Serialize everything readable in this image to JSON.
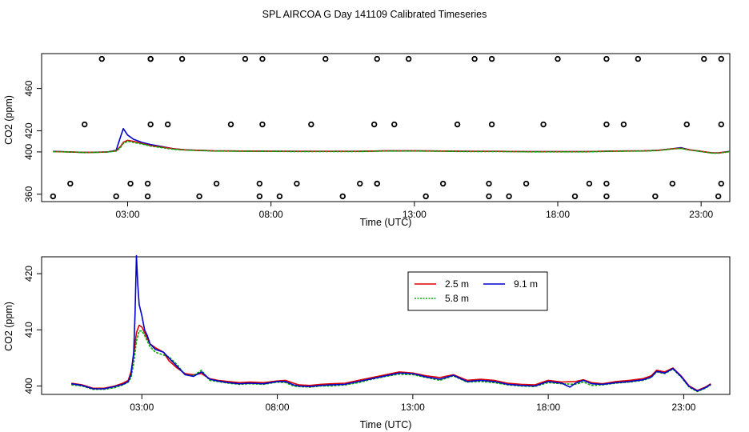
{
  "title": "SPL AIRCOA G  Day 141109  Calibrated Timeseries",
  "chart_data": [
    {
      "type": "scatter+line",
      "xlabel": "Time (UTC)",
      "ylabel": "CO2 (ppm)",
      "xlim": [
        0.0,
        24.0
      ],
      "ylim": [
        353,
        493
      ],
      "xticks": [
        {
          "v": 3,
          "label": "03:00"
        },
        {
          "v": 8,
          "label": "08:00"
        },
        {
          "v": 13,
          "label": "13:00"
        },
        {
          "v": 18,
          "label": "18:00"
        },
        {
          "v": 23,
          "label": "23:00"
        }
      ],
      "yticks": [
        {
          "v": 360,
          "label": "360"
        },
        {
          "v": 400,
          "label": "400"
        },
        {
          "v": 420,
          "label": "420"
        },
        {
          "v": 460,
          "label": "460"
        }
      ],
      "points": {
        "x": [
          0.4,
          1.0,
          1.5,
          2.1,
          2.6,
          3.1,
          3.7,
          3.7,
          3.8,
          3.8,
          3.8,
          4.4,
          4.9,
          5.5,
          6.1,
          6.6,
          7.1,
          7.6,
          7.6,
          7.7,
          7.7,
          8.3,
          8.9,
          9.4,
          9.9,
          10.5,
          11.1,
          11.6,
          11.7,
          11.7,
          11.7,
          12.3,
          12.8,
          13.4,
          14.0,
          14.5,
          15.1,
          15.6,
          15.6,
          15.7,
          15.7,
          16.3,
          16.9,
          17.5,
          18.0,
          18.6,
          19.1,
          19.7,
          19.7,
          19.7,
          19.7,
          20.3,
          20.8,
          21.4,
          22.0,
          22.5,
          23.1,
          23.6,
          23.7,
          23.7,
          23.7
        ],
        "y": [
          358,
          370,
          426,
          488,
          358,
          370,
          358,
          370,
          426,
          488,
          488,
          426,
          488,
          358,
          370,
          426,
          488,
          358,
          370,
          426,
          488,
          358,
          370,
          426,
          488,
          358,
          370,
          426,
          488,
          370,
          370,
          426,
          488,
          358,
          370,
          426,
          488,
          358,
          370,
          426,
          488,
          358,
          370,
          426,
          488,
          358,
          370,
          426,
          488,
          358,
          370,
          426,
          488,
          358,
          370,
          426,
          488,
          358,
          370,
          426,
          488
        ]
      },
      "series": [
        {
          "name": "9.1 m",
          "color": "#0000cc",
          "x": [
            0.4,
            1.0,
            1.5,
            2.0,
            2.3,
            2.6,
            2.75,
            2.85,
            3.0,
            3.2,
            3.5,
            3.8,
            4.2,
            4.6,
            5.0,
            5.5,
            6.0,
            7.0,
            8.0,
            9.0,
            10.0,
            11.0,
            12.0,
            13.0,
            14.0,
            15.0,
            16.0,
            17.0,
            18.0,
            19.0,
            20.0,
            21.0,
            21.5,
            22.0,
            22.3,
            22.6,
            23.0,
            23.4,
            23.6,
            24.0
          ],
          "values": [
            400.5,
            400,
            399.5,
            399.8,
            400,
            401.5,
            414,
            422,
            416,
            412,
            409,
            407,
            405,
            403,
            402,
            401.5,
            401,
            400.8,
            400.7,
            400.5,
            400.5,
            400.5,
            401,
            401,
            400.8,
            400.5,
            400.5,
            400.3,
            400.3,
            400.3,
            400.8,
            401,
            401.5,
            403,
            404,
            402,
            400.5,
            399,
            399,
            400.5
          ]
        },
        {
          "name": "2.5 m",
          "color": "#dd0000",
          "x": [
            0.4,
            1.0,
            1.5,
            2.0,
            2.3,
            2.6,
            2.75,
            2.85,
            3.0,
            3.2,
            3.5,
            3.8,
            4.2,
            4.6,
            5.0,
            5.5,
            6.0,
            7.0,
            8.0,
            9.0,
            10.0,
            11.0,
            12.0,
            13.0,
            14.0,
            15.0,
            16.0,
            17.0,
            18.0,
            19.0,
            20.0,
            21.0,
            21.5,
            22.0,
            22.3,
            22.6,
            23.0,
            23.4,
            23.6,
            24.0
          ],
          "values": [
            400.3,
            400,
            399.5,
            399.7,
            400,
            401,
            405,
            409,
            411,
            410,
            408,
            406,
            404.5,
            403,
            402,
            401.5,
            401,
            400.8,
            400.7,
            400.5,
            400.5,
            400.5,
            401,
            401,
            400.8,
            400.5,
            400.5,
            400.3,
            400.3,
            400.3,
            400.8,
            401,
            401.5,
            403,
            403.5,
            402,
            400.5,
            399,
            399,
            400.3
          ]
        },
        {
          "name": "5.8 m",
          "color": "#00aa00",
          "x": [
            0.4,
            1.0,
            1.5,
            2.0,
            2.3,
            2.6,
            2.75,
            2.85,
            3.0,
            3.2,
            3.5,
            3.8,
            4.2,
            4.6,
            5.0,
            5.5,
            6.0,
            7.0,
            8.0,
            9.0,
            10.0,
            11.0,
            12.0,
            13.0,
            14.0,
            15.0,
            16.0,
            17.0,
            18.0,
            19.0,
            20.0,
            21.0,
            21.5,
            22.0,
            22.3,
            22.6,
            23.0,
            23.4,
            23.6,
            24.0
          ],
          "values": [
            400.2,
            400,
            399.4,
            399.6,
            399.9,
            400.8,
            404,
            408,
            410,
            409,
            407.5,
            405.5,
            404,
            402.5,
            401.8,
            401.3,
            400.8,
            400.6,
            400.5,
            400.3,
            400.3,
            400.3,
            400.8,
            400.8,
            400.6,
            400.3,
            400.3,
            400.1,
            400.1,
            400.1,
            400.6,
            400.8,
            401.3,
            402.8,
            403.3,
            401.8,
            400.3,
            398.8,
            398.8,
            400.2
          ]
        }
      ]
    },
    {
      "type": "line",
      "xlabel": "Time (UTC)",
      "ylabel": "CO2 (ppm)",
      "xlim": [
        -0.7,
        24.7
      ],
      "ylim": [
        398.5,
        423
      ],
      "xticks": [
        {
          "v": 3,
          "label": "03:00"
        },
        {
          "v": 8,
          "label": "08:00"
        },
        {
          "v": 13,
          "label": "13:00"
        },
        {
          "v": 18,
          "label": "18:00"
        },
        {
          "v": 23,
          "label": "23:00"
        }
      ],
      "yticks": [
        {
          "v": 400,
          "label": "400"
        },
        {
          "v": 410,
          "label": "410"
        },
        {
          "v": 420,
          "label": "420"
        }
      ],
      "legend": {
        "placement": "top-right",
        "entries": [
          {
            "label": "2.5 m",
            "color": "#dd0000"
          },
          {
            "label": "9.1 m",
            "color": "#0000cc"
          },
          {
            "label": "5.8 m",
            "color": "#00aa00"
          }
        ]
      },
      "series": [
        {
          "name": "2.5 m",
          "color": "#dd0000",
          "x": [
            0.4,
            0.8,
            1.2,
            1.6,
            2.0,
            2.3,
            2.5,
            2.6,
            2.7,
            2.8,
            2.9,
            3.0,
            3.1,
            3.3,
            3.5,
            3.8,
            4.0,
            4.3,
            4.6,
            4.9,
            5.2,
            5.5,
            5.8,
            6.2,
            6.6,
            7.0,
            7.5,
            8.0,
            8.3,
            8.6,
            8.8,
            9.2,
            9.6,
            10.0,
            10.5,
            11.0,
            11.5,
            12.0,
            12.5,
            13.0,
            13.5,
            14.0,
            14.5,
            15.0,
            15.5,
            16.0,
            16.5,
            17.0,
            17.5,
            18.0,
            18.5,
            19.0,
            19.3,
            19.6,
            20.0,
            20.5,
            21.0,
            21.5,
            21.8,
            22.0,
            22.3,
            22.6,
            22.9,
            23.2,
            23.5,
            23.8,
            24.0
          ],
          "values": [
            400.5,
            400.2,
            399.6,
            399.6,
            400.0,
            400.5,
            401.0,
            402.5,
            405.5,
            409.5,
            410.8,
            410.5,
            409.5,
            407.5,
            406.8,
            406.0,
            404.5,
            403.2,
            402.2,
            402.0,
            402.2,
            401.3,
            401.0,
            400.8,
            400.6,
            400.7,
            400.6,
            400.9,
            401.0,
            400.5,
            400.2,
            400.1,
            400.3,
            400.4,
            400.5,
            401.0,
            401.5,
            402.0,
            402.5,
            402.3,
            401.8,
            401.5,
            402.0,
            401.0,
            401.2,
            401.0,
            400.5,
            400.3,
            400.2,
            401.0,
            400.7,
            400.8,
            401.1,
            400.6,
            400.4,
            400.8,
            401.0,
            401.3,
            401.8,
            402.8,
            402.5,
            403.2,
            401.8,
            400.0,
            399.2,
            399.8,
            400.4
          ]
        },
        {
          "name": "5.8 m",
          "color": "#00aa00",
          "x": [
            0.4,
            0.8,
            1.2,
            1.6,
            2.0,
            2.3,
            2.5,
            2.6,
            2.7,
            2.8,
            2.9,
            3.0,
            3.1,
            3.3,
            3.5,
            3.8,
            4.0,
            4.3,
            4.6,
            4.9,
            5.2,
            5.5,
            5.8,
            6.2,
            6.6,
            7.0,
            7.5,
            8.0,
            8.3,
            8.6,
            8.8,
            9.2,
            9.6,
            10.0,
            10.5,
            11.0,
            11.5,
            12.0,
            12.5,
            13.0,
            13.5,
            14.0,
            14.5,
            15.0,
            15.5,
            16.0,
            16.5,
            17.0,
            17.5,
            18.0,
            18.5,
            19.0,
            19.3,
            19.6,
            20.0,
            20.5,
            21.0,
            21.5,
            21.8,
            22.0,
            22.3,
            22.6,
            22.9,
            23.2,
            23.5,
            23.8,
            24.0
          ],
          "values": [
            400.2,
            400.0,
            399.4,
            399.4,
            399.7,
            400.2,
            400.7,
            401.5,
            404.0,
            408.0,
            409.8,
            409.8,
            409.0,
            407.0,
            406.0,
            405.5,
            405.2,
            403.8,
            402.0,
            401.8,
            402.8,
            401.0,
            400.8,
            400.5,
            400.3,
            400.4,
            400.3,
            400.7,
            400.6,
            400.0,
            399.9,
            399.8,
            400.0,
            400.0,
            400.2,
            400.6,
            401.2,
            401.7,
            402.1,
            402.0,
            401.5,
            401.0,
            401.8,
            400.7,
            400.8,
            400.6,
            400.2,
            400.0,
            399.9,
            400.6,
            400.4,
            400.3,
            400.7,
            400.1,
            400.2,
            400.5,
            400.7,
            401.0,
            401.5,
            402.5,
            402.2,
            403.0,
            401.6,
            399.8,
            399.0,
            399.6,
            400.2
          ]
        },
        {
          "name": "9.1 m",
          "color": "#0000cc",
          "x": [
            0.4,
            0.8,
            1.2,
            1.6,
            2.0,
            2.3,
            2.5,
            2.6,
            2.7,
            2.75,
            2.8,
            2.85,
            2.9,
            3.0,
            3.1,
            3.2,
            3.3,
            3.5,
            3.8,
            4.0,
            4.3,
            4.6,
            4.9,
            5.2,
            5.5,
            5.8,
            6.2,
            6.6,
            7.0,
            7.5,
            8.0,
            8.3,
            8.6,
            8.8,
            9.2,
            9.6,
            10.0,
            10.5,
            11.0,
            11.5,
            12.0,
            12.5,
            13.0,
            13.5,
            14.0,
            14.5,
            15.0,
            15.5,
            16.0,
            16.5,
            17.0,
            17.5,
            18.0,
            18.5,
            18.8,
            19.0,
            19.3,
            19.6,
            20.0,
            20.5,
            21.0,
            21.5,
            21.8,
            22.0,
            22.3,
            22.6,
            22.9,
            23.2,
            23.5,
            23.8,
            24.0
          ],
          "values": [
            400.4,
            400.1,
            399.5,
            399.5,
            399.9,
            400.3,
            400.8,
            402.0,
            406.0,
            413.0,
            423.2,
            418.0,
            414.5,
            412.5,
            410.0,
            409.0,
            407.5,
            406.5,
            406.0,
            405.0,
            403.5,
            402.0,
            401.7,
            402.5,
            401.2,
            400.9,
            400.6,
            400.4,
            400.5,
            400.4,
            400.8,
            400.8,
            400.2,
            400.0,
            399.9,
            400.1,
            400.2,
            400.3,
            400.8,
            401.3,
            401.8,
            402.3,
            402.2,
            401.6,
            401.2,
            401.9,
            400.8,
            401.0,
            400.8,
            400.3,
            400.1,
            400.0,
            400.8,
            400.5,
            399.8,
            400.5,
            401.0,
            400.4,
            400.3,
            400.6,
            400.8,
            401.1,
            401.6,
            402.6,
            402.3,
            403.1,
            401.7,
            399.9,
            399.1,
            399.7,
            400.3
          ]
        }
      ]
    }
  ]
}
